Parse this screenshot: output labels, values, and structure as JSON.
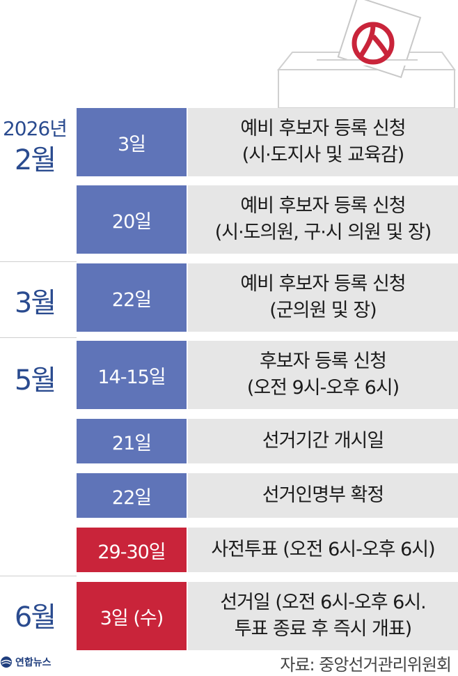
{
  "year_label": "2026년",
  "months": {
    "feb": "2월",
    "mar": "3월",
    "may": "5월",
    "jun": "6월"
  },
  "rows": [
    {
      "date": "3일",
      "line1": "예비 후보자 등록 신청",
      "line2": "(시·도지사 및 교육감)",
      "color": "#5f74b8"
    },
    {
      "date": "20일",
      "line1": "예비 후보자 등록 신청",
      "line2": "(시·도의원, 구·시 의원 및 장)",
      "color": "#5f74b8"
    },
    {
      "date": "22일",
      "line1": "예비 후보자 등록 신청",
      "line2": "(군의원 및 장)",
      "color": "#5f74b8"
    },
    {
      "date": "14-15일",
      "line1": "후보자 등록 신청",
      "line2": "(오전 9시-오후 6시)",
      "color": "#5f74b8"
    },
    {
      "date": "21일",
      "line1": "선거기간 개시일",
      "color": "#5f74b8"
    },
    {
      "date": "22일",
      "line1": "선거인명부 확정",
      "color": "#5f74b8"
    },
    {
      "date": "29-30일",
      "line1": "사전투표 (오전 6시-오후 6시)",
      "color": "#c9243a"
    },
    {
      "date": "3일 (수)",
      "line1": "선거일 (오전 6시-오후 6시.",
      "line2": "투표 종료 후 즉시 개표)",
      "color": "#c9243a"
    }
  ],
  "footer": {
    "logo_text": "연합뉴스",
    "source": "자료: 중앙선거관리위원회"
  }
}
